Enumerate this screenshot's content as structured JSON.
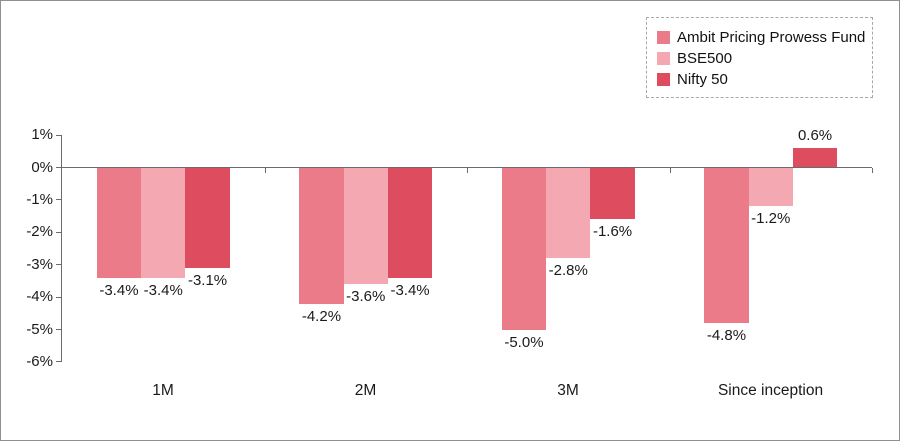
{
  "chart_data": {
    "type": "bar",
    "title": "",
    "categories": [
      "1M",
      "2M",
      "3M",
      "Since inception"
    ],
    "series": [
      {
        "name": "Ambit Pricing Prowess Fund",
        "color": "#EC7B89",
        "values": [
          -3.4,
          -4.2,
          -5.0,
          -4.8
        ],
        "labels": [
          "-3.4%",
          "-4.2%",
          "-5.0%",
          "-4.8%"
        ]
      },
      {
        "name": "BSE500",
        "color": "#F4A9B2",
        "values": [
          -3.4,
          -3.6,
          -2.8,
          -1.2
        ],
        "labels": [
          "-3.4%",
          "-3.6%",
          "-2.8%",
          "-1.2%"
        ]
      },
      {
        "name": "Nifty 50",
        "color": "#DE4C5F",
        "values": [
          -3.1,
          -3.4,
          -1.6,
          0.6
        ],
        "labels": [
          "-3.1%",
          "-3.4%",
          "-1.6%",
          "0.6%"
        ]
      }
    ],
    "y_axis": {
      "min": -6,
      "max": 1,
      "ticks": [
        1,
        0,
        -1,
        -2,
        -3,
        -4,
        -5,
        -6
      ],
      "tick_labels": [
        "1%",
        "0%",
        "-1%",
        "-2%",
        "-3%",
        "-4%",
        "-5%",
        "-6%"
      ]
    },
    "legend": {
      "position": "top-right",
      "border": "dashed",
      "entries": [
        "Ambit Pricing Prowess Fund",
        "BSE500",
        "Nifty 50"
      ]
    },
    "grid": false,
    "axis_color": "#6b6b6b",
    "text_color": "#1a1a1a",
    "background": "#ffffff"
  }
}
